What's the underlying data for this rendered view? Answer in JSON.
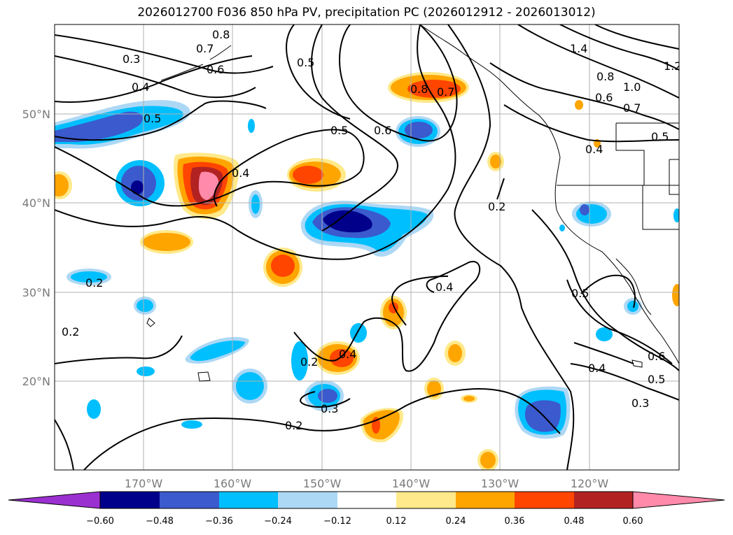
{
  "title": "2026012700 F036 850 hPa PV, precipitation PC (2026012912 - 2026013012)",
  "map": {
    "lat_labels": [
      "50°N",
      "40°N",
      "30°N",
      "20°N"
    ],
    "lon_labels": [
      "170°W",
      "160°W",
      "150°W",
      "140°W",
      "130°W",
      "120°W"
    ]
  },
  "contour_labels": [
    "0.8",
    "0.7",
    "0.6",
    "0.3",
    "0.4",
    "0.5",
    "0.5",
    "1.4",
    "1.2",
    "0.8",
    "1.0",
    "0.6",
    "0.7",
    "0.8",
    "0.7",
    "0.5",
    "0.6",
    "0.4",
    "0.5",
    "0.4",
    "0.2",
    "0.2",
    "0.4",
    "0.5",
    "0.6",
    "0.5",
    "0.4",
    "0.3",
    "0.2",
    "0.2",
    "0.4",
    "0.3",
    "0.2"
  ],
  "colorbar": {
    "ticks": [
      "−0.60",
      "−0.48",
      "−0.36",
      "−0.24",
      "−0.12",
      "0.12",
      "0.24",
      "0.36",
      "0.48",
      "0.60"
    ],
    "colors": {
      "neg_ext": "#9b30d0",
      "n060": "#00008b",
      "n048": "#3a5acd",
      "n036": "#00bfff",
      "n024": "#add8f5",
      "zero": "#ffffff",
      "p012": "#ffe98a",
      "p024": "#ffa500",
      "p036": "#ff4500",
      "p048": "#b22222",
      "pos_ext": "#ff8aaa"
    }
  }
}
